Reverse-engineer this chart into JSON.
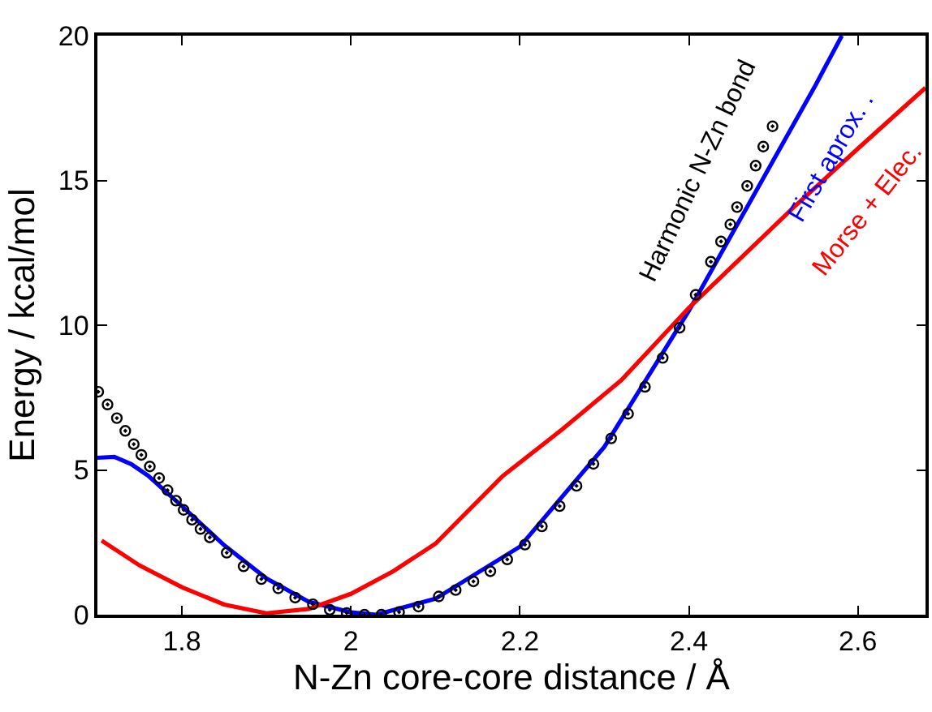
{
  "chart_data": {
    "type": "line",
    "xlabel": "N-Zn core-core distance / Å",
    "ylabel": "Energy / kcal/mol",
    "xlim": [
      1.7,
      2.68
    ],
    "xticks": [
      1.8,
      2,
      2.2,
      2.4,
      2.6
    ],
    "ylim": [
      0,
      20
    ],
    "yticks": [
      0,
      5,
      10,
      15,
      20
    ],
    "grid": false,
    "legend": "top right",
    "series": [
      {
        "name": "Harmonic N-Zn bond",
        "type": "scatter",
        "marker": "circle",
        "color": "#000000",
        "x": [
          1.701,
          1.712,
          1.723,
          1.733,
          1.743,
          1.752,
          1.762,
          1.773,
          1.783,
          1.793,
          1.802,
          1.812,
          1.822,
          1.833,
          1.853,
          1.873,
          1.894,
          1.914,
          1.934,
          1.955,
          1.975,
          1.995,
          2.016,
          2.036,
          2.057,
          2.08,
          2.104,
          2.124,
          2.145,
          2.165,
          2.185,
          2.206,
          2.226,
          2.247,
          2.267,
          2.287,
          2.308,
          2.328,
          2.348,
          2.369,
          2.389,
          2.408,
          2.426,
          2.438,
          2.449,
          2.457,
          2.469,
          2.479,
          2.488,
          2.499
        ],
        "values": [
          7.7,
          7.26,
          6.79,
          6.35,
          5.89,
          5.52,
          5.12,
          4.72,
          4.3,
          3.94,
          3.62,
          3.28,
          2.96,
          2.67,
          2.14,
          1.67,
          1.23,
          0.91,
          0.59,
          0.36,
          0.17,
          0.06,
          0,
          0,
          0.09,
          0.28,
          0.63,
          0.85,
          1.15,
          1.5,
          1.91,
          2.42,
          3.05,
          3.75,
          4.45,
          5.21,
          6.09,
          6.94,
          7.87,
          8.87,
          9.91,
          11.05,
          12.19,
          12.89,
          13.48,
          14.08,
          14.81,
          15.51,
          16.17,
          16.87
        ]
      },
      {
        "name": "First aprox. .",
        "color": "#0000ff",
        "x": [
          1.7,
          1.72,
          1.74,
          1.76,
          1.8,
          1.85,
          1.9,
          1.95,
          2.0,
          2.03,
          2.1,
          2.2,
          2.3,
          2.4,
          2.45,
          2.5,
          2.55,
          2.581
        ],
        "values": [
          5.42,
          5.45,
          5.2,
          4.8,
          3.75,
          2.4,
          1.25,
          0.45,
          0.08,
          0,
          0.55,
          2.35,
          5.8,
          10.5,
          13.1,
          15.7,
          18.3,
          20
        ]
      },
      {
        "name": "Morse + Elec.",
        "color": "#ff0000",
        "x": [
          1.705,
          1.75,
          1.8,
          1.85,
          1.9,
          1.95,
          2.0,
          2.05,
          2.1,
          2.18,
          2.25,
          2.32,
          2.4,
          2.45,
          2.525,
          2.6,
          2.68
        ],
        "values": [
          2.56,
          1.7,
          0.95,
          0.35,
          0.05,
          0.2,
          0.72,
          1.5,
          2.45,
          4.8,
          6.4,
          8.1,
          10.6,
          12.0,
          14.1,
          16.1,
          18.2
        ]
      }
    ]
  }
}
